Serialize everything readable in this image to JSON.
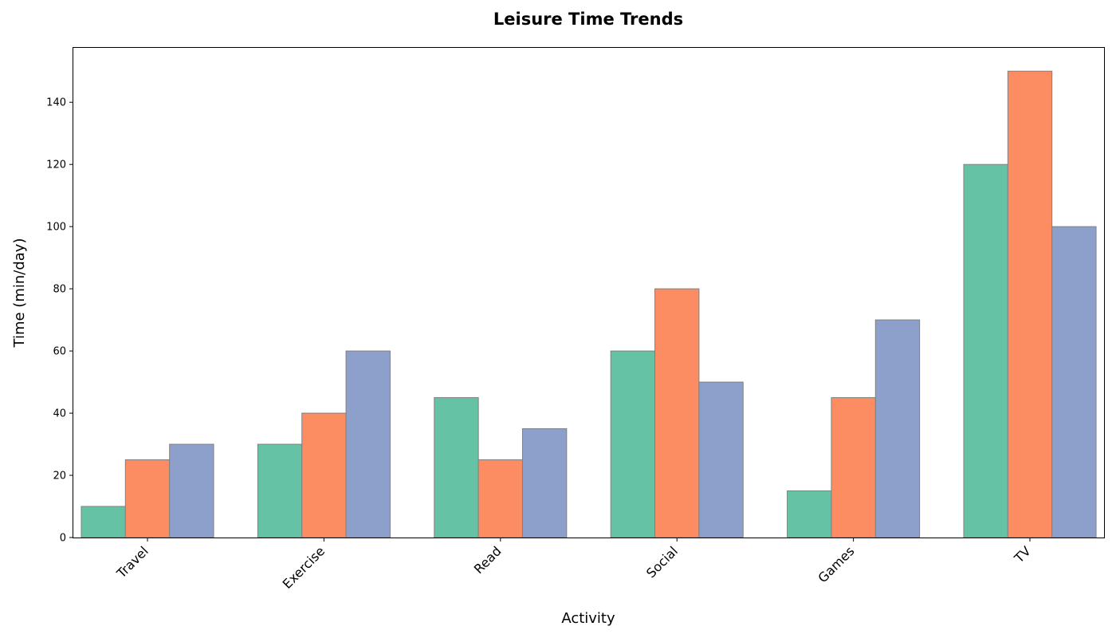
{
  "chart_data": {
    "type": "bar",
    "title": "Leisure Time Trends",
    "xlabel": "Activity",
    "ylabel": "Time (min/day)",
    "categories": [
      "Travel",
      "Exercise",
      "Read",
      "Social",
      "Games",
      "TV"
    ],
    "series": [
      {
        "color": "#66c2a5",
        "values": [
          10,
          30,
          45,
          60,
          15,
          120
        ]
      },
      {
        "color": "#fc8d62",
        "values": [
          25,
          40,
          25,
          80,
          45,
          150
        ]
      },
      {
        "color": "#8da0cb",
        "values": [
          30,
          60,
          35,
          50,
          70,
          100
        ]
      }
    ],
    "ylim": [
      0,
      157.5
    ],
    "yticks": [
      0,
      20,
      40,
      60,
      80,
      100,
      120,
      140
    ],
    "grid": false,
    "legend": "none",
    "bar_edge_color": "#808080"
  }
}
